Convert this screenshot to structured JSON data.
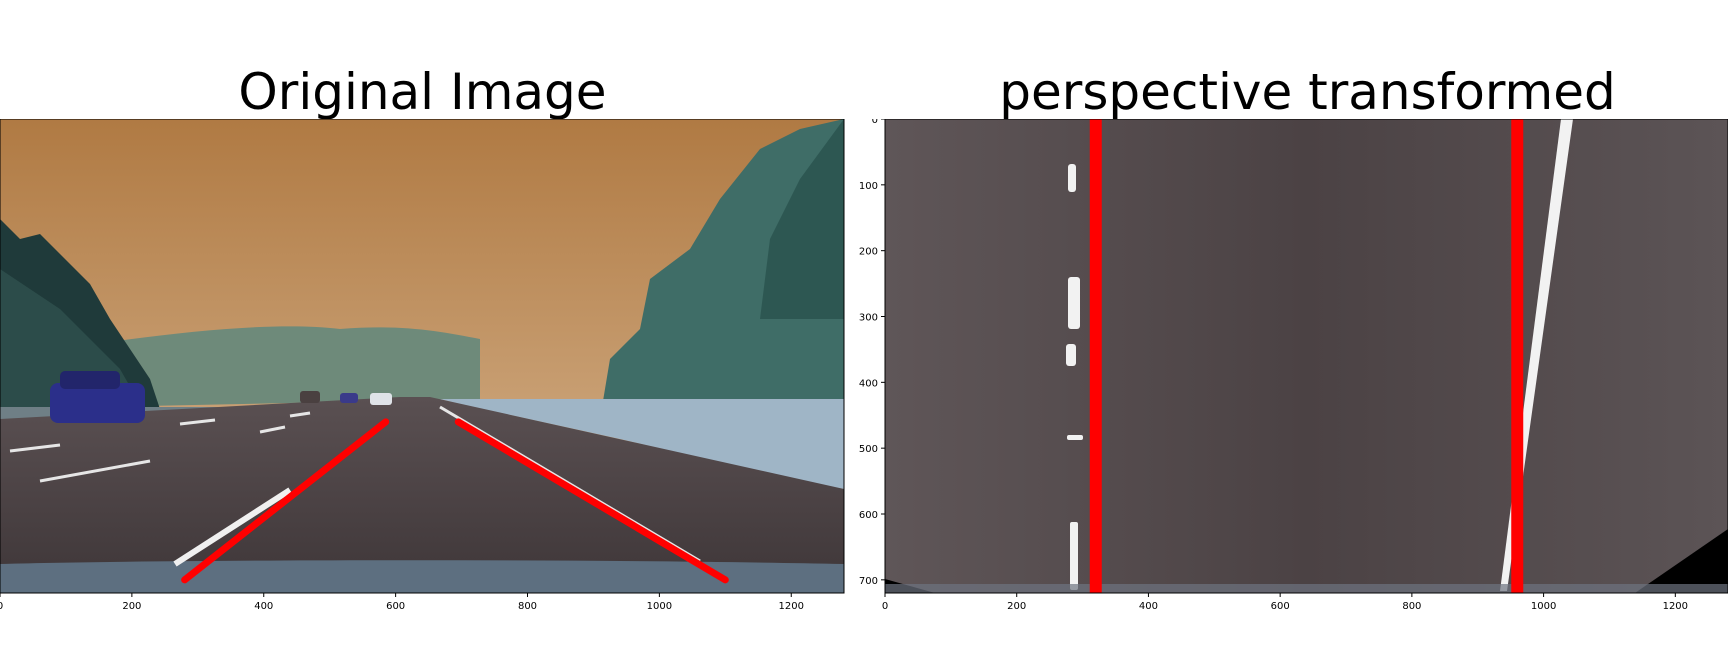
{
  "panels": [
    {
      "title": "Original Image",
      "x_ticks": [
        "0",
        "200",
        "400",
        "600",
        "800",
        "1000",
        "1200"
      ],
      "x_range": [
        0,
        1280
      ],
      "y_range": [
        0,
        720
      ],
      "lane_lines": [
        {
          "x1": 280,
          "y1": 700,
          "x2": 585,
          "y2": 460
        },
        {
          "x1": 695,
          "y1": 460,
          "x2": 1100,
          "y2": 700
        }
      ]
    },
    {
      "title": "perspective transformed",
      "x_ticks": [
        "0",
        "200",
        "400",
        "600",
        "800",
        "1000",
        "1200"
      ],
      "y_ticks": [
        "0",
        "100",
        "200",
        "300",
        "400",
        "500",
        "600",
        "700"
      ],
      "x_range": [
        0,
        1280
      ],
      "y_range": [
        0,
        720
      ],
      "lane_lines": [
        {
          "x1": 320,
          "y1": 0,
          "x2": 320,
          "y2": 720
        },
        {
          "x1": 960,
          "y1": 0,
          "x2": 960,
          "y2": 720
        }
      ]
    }
  ],
  "colors": {
    "lane_line": "#ff0000",
    "sky": "#c8935a",
    "road": "#4a4143"
  }
}
